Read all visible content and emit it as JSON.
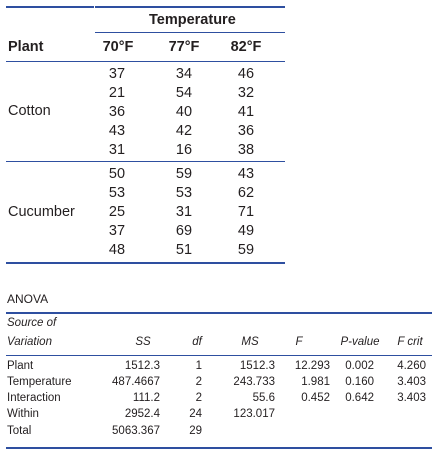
{
  "upper_table": {
    "group_header": "Temperature",
    "plant_header": "Plant",
    "temp_headers": [
      "70°F",
      "77°F",
      "82°F"
    ],
    "groups": [
      {
        "name": "Cotton",
        "rows": [
          [
            "37",
            "34",
            "46"
          ],
          [
            "21",
            "54",
            "32"
          ],
          [
            "36",
            "40",
            "41"
          ],
          [
            "43",
            "42",
            "36"
          ],
          [
            "31",
            "16",
            "38"
          ]
        ]
      },
      {
        "name": "Cucumber",
        "rows": [
          [
            "50",
            "59",
            "43"
          ],
          [
            "53",
            "53",
            "62"
          ],
          [
            "25",
            "31",
            "71"
          ],
          [
            "37",
            "69",
            "49"
          ],
          [
            "48",
            "51",
            "59"
          ]
        ]
      }
    ]
  },
  "anova": {
    "title": "ANOVA",
    "source_line1": "Source of",
    "source_line2": "Variation",
    "columns": [
      "SS",
      "df",
      "MS",
      "F",
      "P-value",
      "F crit"
    ],
    "rows": [
      {
        "source": "Plant",
        "ss": "1512.3",
        "df": "1",
        "ms": "1512.3",
        "f": "12.293",
        "p": "0.002",
        "fcrit": "4.260"
      },
      {
        "source": "Temperature",
        "ss": "487.4667",
        "df": "2",
        "ms": "243.733",
        "f": "1.981",
        "p": "0.160",
        "fcrit": "3.403"
      },
      {
        "source": "Interaction",
        "ss": "111.2",
        "df": "2",
        "ms": "55.6",
        "f": "0.452",
        "p": "0.642",
        "fcrit": "3.403"
      },
      {
        "source": "Within",
        "ss": "2952.4",
        "df": "24",
        "ms": "123.017",
        "f": "",
        "p": "",
        "fcrit": ""
      },
      {
        "source": "Total",
        "ss": "5063.367",
        "df": "29",
        "ms": "",
        "f": "",
        "p": "",
        "fcrit": ""
      }
    ]
  },
  "colors": {
    "rule": "#2e4fa0",
    "text": "#231f20"
  }
}
